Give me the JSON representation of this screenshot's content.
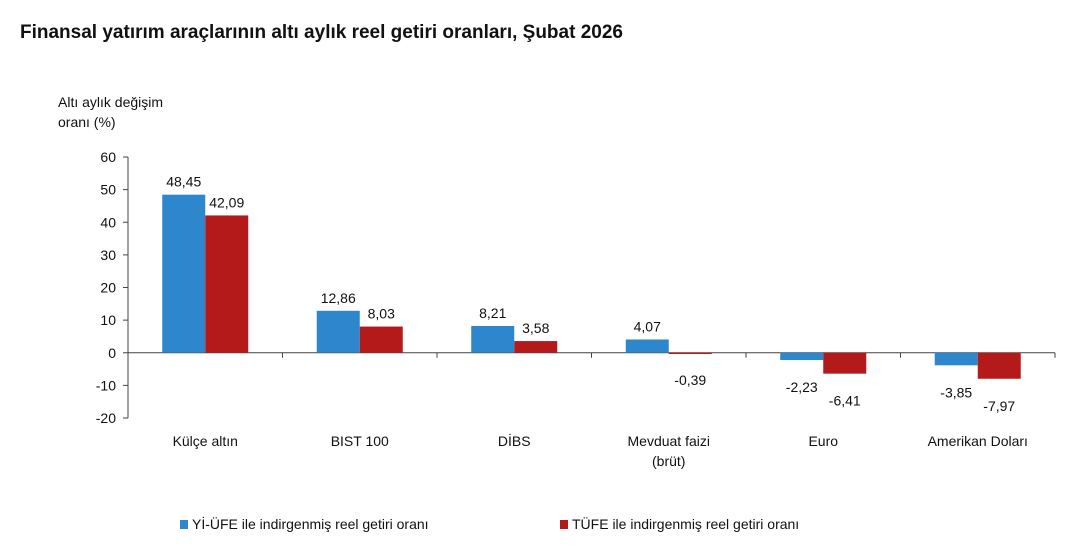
{
  "chart_data": {
    "type": "bar",
    "title": "Finansal yatırım araçlarının altı aylık reel getiri oranları, Şubat 2026",
    "ylabel": "Altı aylık değişim oranı (%)",
    "ylabel_lines": [
      "Altı aylık değişim",
      "oranı (%)"
    ],
    "ylim": [
      -20,
      60
    ],
    "yticks": [
      60,
      50,
      40,
      30,
      20,
      10,
      0,
      -10,
      -20
    ],
    "grid": false,
    "legend_position": "bottom",
    "categories": [
      "Külçe altın",
      "BIST 100",
      "DİBS",
      "Mevduat faizi (brüt)",
      "Euro",
      "Amerikan Doları"
    ],
    "category_lines": [
      [
        "Külçe altın"
      ],
      [
        "BIST 100"
      ],
      [
        "DİBS"
      ],
      [
        "Mevduat faizi",
        "(brüt)"
      ],
      [
        "Euro"
      ],
      [
        "Amerikan Doları"
      ]
    ],
    "series": [
      {
        "name": "Yİ-ÜFE ile indirgenmiş reel getiri oranı",
        "color": "#2e86cc",
        "values": [
          48.45,
          12.86,
          8.21,
          4.07,
          -2.23,
          -3.85
        ],
        "labels": [
          "48,45",
          "12,86",
          "8,21",
          "4,07",
          "-2,23",
          "-3,85"
        ]
      },
      {
        "name": "TÜFE ile indirgenmiş reel getiri oranı",
        "color": "#b51a1a",
        "values": [
          42.09,
          8.03,
          3.58,
          -0.39,
          -6.41,
          -7.97
        ],
        "labels": [
          "42,09",
          "8,03",
          "3,58",
          "-0,39",
          "-6,41",
          "-7,97"
        ]
      }
    ]
  }
}
